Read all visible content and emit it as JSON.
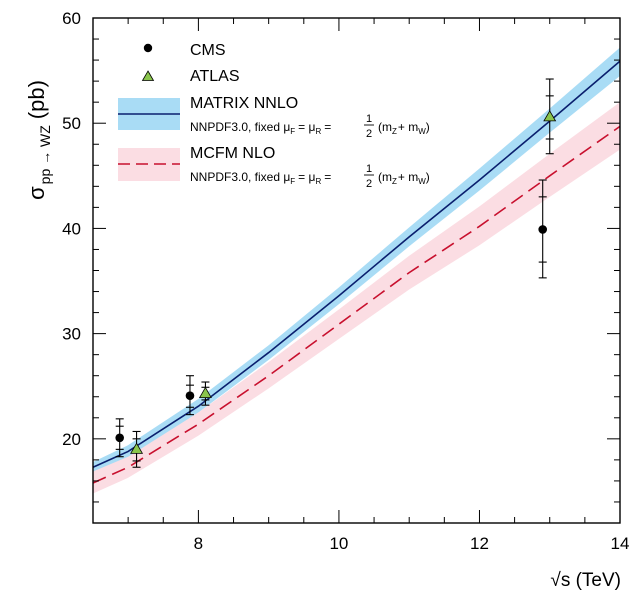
{
  "chart_data": {
    "type": "line",
    "title": "",
    "xlabel": "√s (TeV)",
    "ylabel": "σ",
    "ylabel_sub": "pp → WZ",
    "ylabel_unit": "(pb)",
    "xlim": [
      6.5,
      14
    ],
    "ylim": [
      12,
      60
    ],
    "x_ticks": [
      8,
      10,
      12,
      14
    ],
    "y_ticks": [
      20,
      30,
      40,
      50,
      60
    ],
    "grid": false,
    "legend_position": "top-left",
    "series": [
      {
        "name": "MATRIX NNLO",
        "kind": "band",
        "line_color": "#0a1f6e",
        "band_color": "#a9dcf5",
        "x": [
          6.5,
          7,
          8,
          9,
          10,
          11,
          12,
          13,
          14
        ],
        "y": [
          17.3,
          18.8,
          23.1,
          28.2,
          33.6,
          39.2,
          44.6,
          50.2,
          55.9
        ],
        "y_low": [
          16.7,
          18.2,
          22.5,
          27.5,
          32.8,
          38.3,
          43.6,
          49.1,
          54.5
        ],
        "y_high": [
          17.8,
          19.4,
          23.8,
          28.9,
          34.4,
          40.1,
          45.7,
          51.4,
          57.2
        ]
      },
      {
        "name": "MCFM NLO",
        "kind": "band",
        "line_color": "#c8102e",
        "band_color": "#fbdde3",
        "dashed": true,
        "x": [
          6.5,
          7,
          8,
          9,
          10,
          11,
          12,
          13,
          14
        ],
        "y": [
          15.8,
          17.3,
          21.4,
          26.0,
          30.9,
          35.8,
          40.2,
          45.0,
          49.7
        ],
        "y_low": [
          14.8,
          16.3,
          20.3,
          24.8,
          29.5,
          34.2,
          38.4,
          43.0,
          47.5
        ],
        "y_high": [
          16.9,
          18.3,
          22.5,
          27.3,
          32.3,
          37.4,
          42.1,
          47.1,
          52.0
        ]
      },
      {
        "name": "CMS",
        "kind": "points",
        "marker": "circle",
        "color": "#000000",
        "points": [
          {
            "x": 6.88,
            "y": 20.1,
            "stat_low": 19.0,
            "stat_high": 21.2,
            "tot_low": 18.3,
            "tot_high": 21.9
          },
          {
            "x": 7.88,
            "y": 24.1,
            "stat_low": 23.0,
            "stat_high": 25.1,
            "tot_low": 22.3,
            "tot_high": 26.0
          },
          {
            "x": 12.9,
            "y": 39.9,
            "stat_low": 36.8,
            "stat_high": 43.0,
            "tot_low": 35.3,
            "tot_high": 44.6
          }
        ]
      },
      {
        "name": "ATLAS",
        "kind": "points",
        "marker": "triangle",
        "color": "#8ac54c",
        "points": [
          {
            "x": 7.12,
            "y": 19.0,
            "stat_low": 17.9,
            "stat_high": 20.0,
            "tot_low": 17.3,
            "tot_high": 20.7
          },
          {
            "x": 8.1,
            "y": 24.3,
            "stat_low": 23.7,
            "stat_high": 24.9,
            "tot_low": 23.2,
            "tot_high": 25.4
          },
          {
            "x": 13.0,
            "y": 50.6,
            "stat_low": 48.5,
            "stat_high": 52.6,
            "tot_low": 47.1,
            "tot_high": 54.2
          }
        ]
      }
    ],
    "legend": {
      "cms": "CMS",
      "atlas": "ATLAS",
      "matrix": "MATRIX NNLO",
      "mcfm": "MCFM NLO",
      "pdf_prefix": "NNPDF3.0, fixed μ",
      "pdf_eq": "= μ",
      "pdf_eq2": "=",
      "frac_num": "1",
      "frac_den": "2",
      "mass_open": "(m",
      "mass_plus": "+ m",
      "mass_close": ")",
      "sub_f": "F",
      "sub_r": "R",
      "sub_z": "Z",
      "sub_w": "W"
    }
  }
}
